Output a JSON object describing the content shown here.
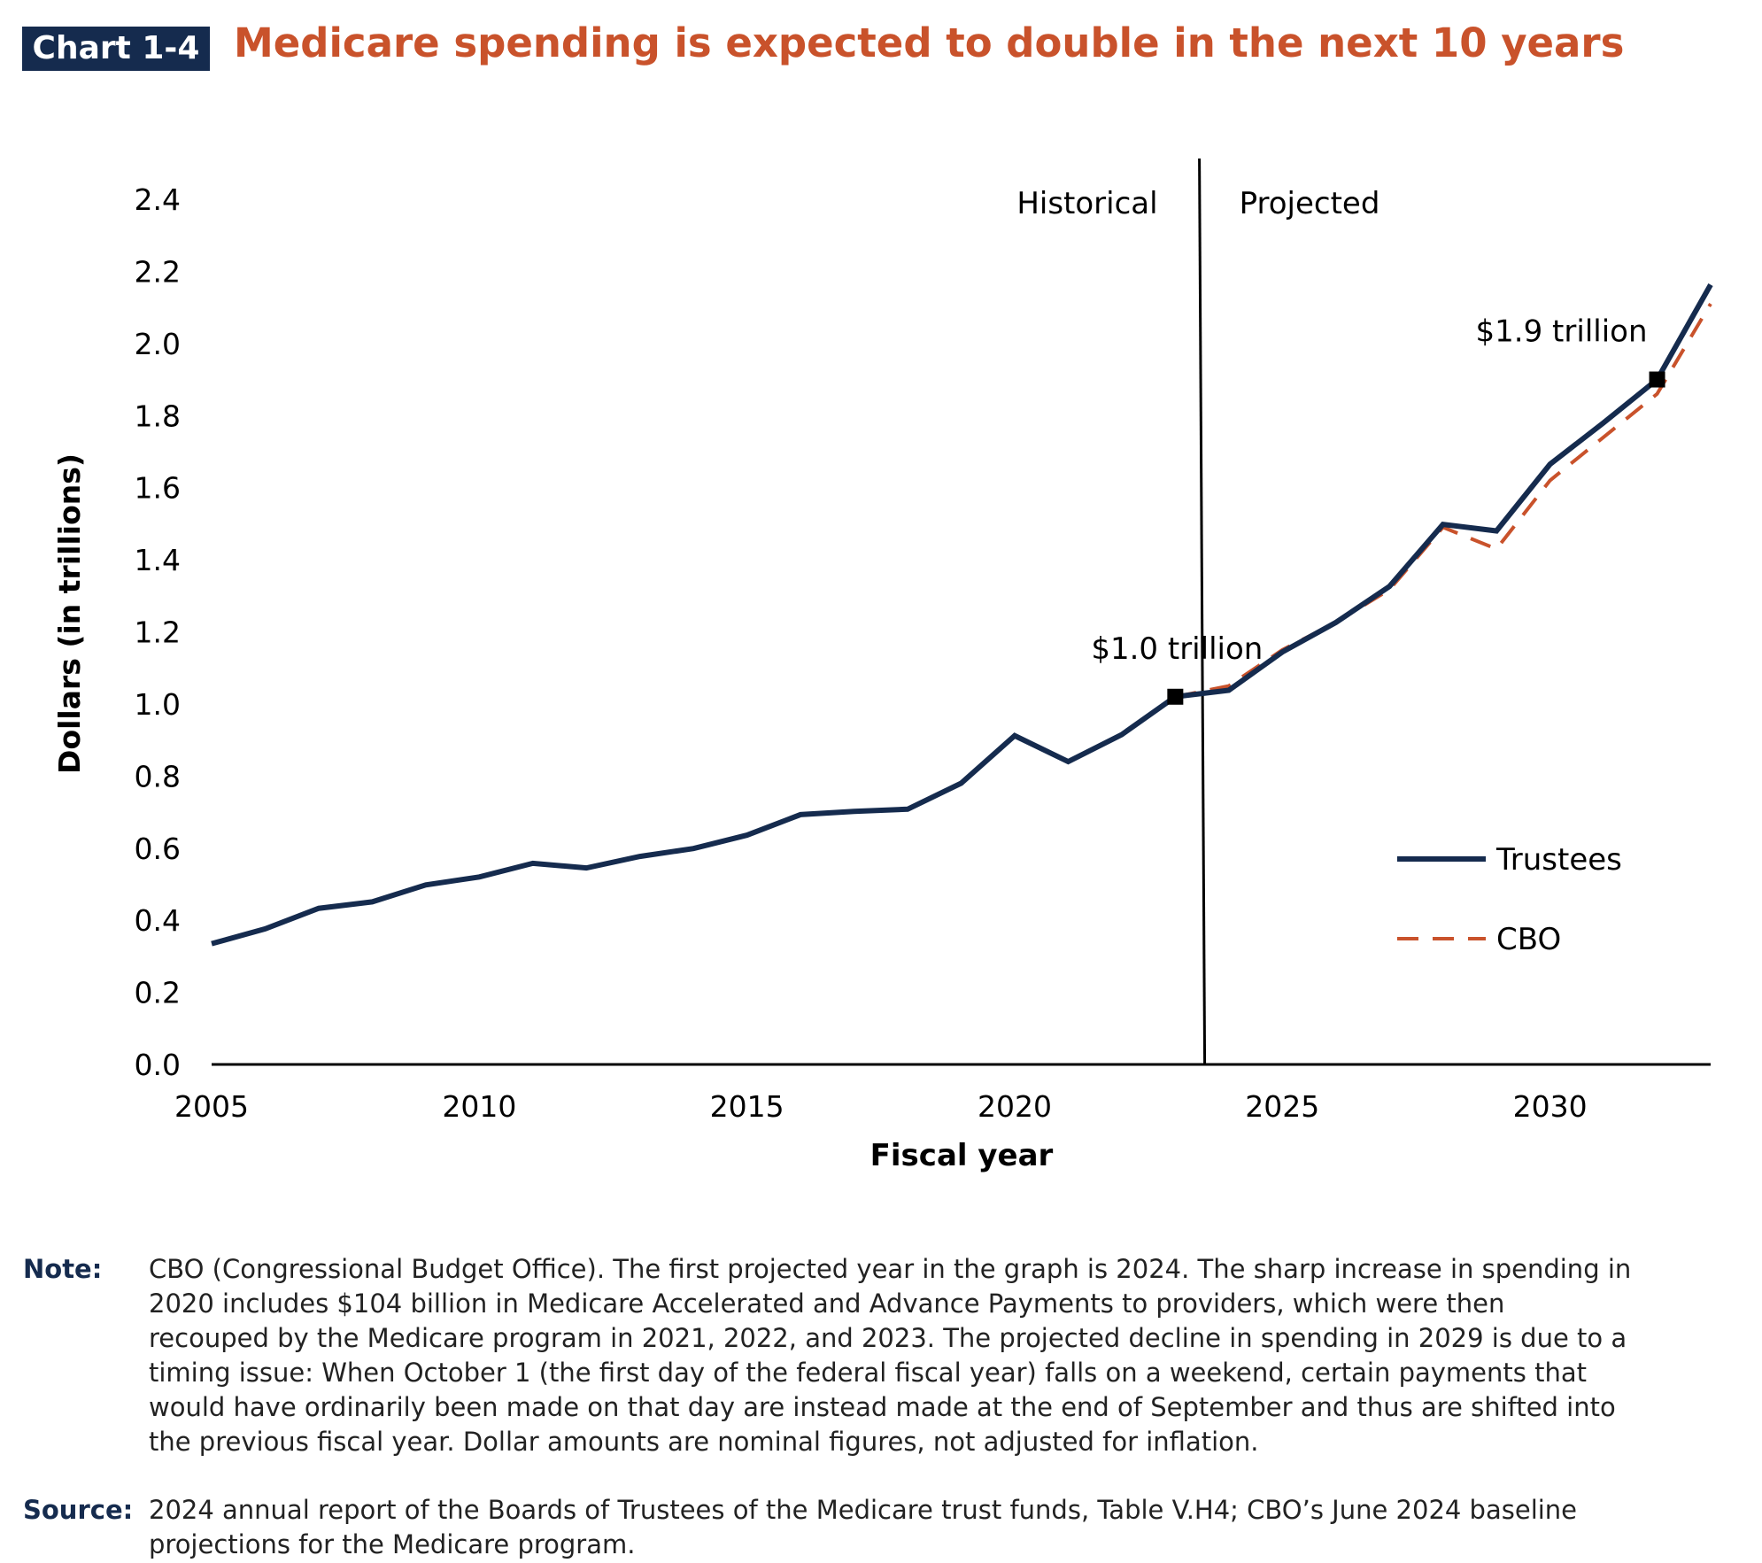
{
  "header": {
    "badge": "Chart 1-4",
    "title": "Medicare spending is expected to double in the next 10 years"
  },
  "chart_data": {
    "type": "line",
    "xlabel": "Fiscal year",
    "ylabel": "Dollars (in trillions)",
    "xlim": [
      2005,
      2033
    ],
    "ylim": [
      0,
      2.4
    ],
    "x_ticks": [
      2005,
      2010,
      2015,
      2020,
      2025,
      2030
    ],
    "y_ticks": [
      "0.0",
      "0.2",
      "0.4",
      "0.6",
      "0.8",
      "1.0",
      "1.2",
      "1.4",
      "1.6",
      "1.8",
      "2.0",
      "2.2",
      "2.4"
    ],
    "grid": false,
    "legend_placement": "right",
    "divider": {
      "x": 2023.5,
      "left_label": "Historical",
      "right_label": "Projected"
    },
    "series": [
      {
        "name": "Trustees",
        "color": "#152B4E",
        "style": "solid",
        "x": [
          2005,
          2006,
          2007,
          2008,
          2009,
          2010,
          2011,
          2012,
          2013,
          2014,
          2015,
          2016,
          2017,
          2018,
          2019,
          2020,
          2021,
          2022,
          2023,
          2024,
          2025,
          2026,
          2027,
          2028,
          2029,
          2030,
          2031,
          2032,
          2033
        ],
        "values": [
          0.335,
          0.376,
          0.433,
          0.451,
          0.498,
          0.52,
          0.558,
          0.545,
          0.577,
          0.599,
          0.636,
          0.693,
          0.702,
          0.708,
          0.78,
          0.912,
          0.84,
          0.915,
          1.02,
          1.038,
          1.144,
          1.226,
          1.326,
          1.498,
          1.48,
          1.665,
          1.78,
          1.9,
          2.163
        ]
      },
      {
        "name": "CBO",
        "color": "#C9522B",
        "style": "dashed",
        "x": [
          2023,
          2024,
          2025,
          2026,
          2027,
          2028,
          2029,
          2030,
          2031,
          2032,
          2033
        ],
        "values": [
          1.02,
          1.05,
          1.15,
          1.226,
          1.317,
          1.49,
          1.43,
          1.62,
          1.74,
          1.86,
          2.11
        ]
      }
    ],
    "annotations": [
      {
        "x": 2023,
        "y": 1.02,
        "text": "$1.0 trillion"
      },
      {
        "x": 2032,
        "y": 1.9,
        "text": "$1.9 trillion"
      }
    ]
  },
  "notes": {
    "note_label": "Note:",
    "note_lines": [
      "CBO (Congressional Budget Office). The first projected year in the graph is 2024. The sharp increase in spending in",
      "2020 includes $104 billion in Medicare Accelerated and Advance Payments to providers, which were then",
      "recouped by the Medicare program in 2021, 2022, and 2023. The projected decline in spending in 2029 is due to a",
      "timing issue: When October 1 (the first day of the federal fiscal year) falls on a weekend, certain payments that",
      "would have ordinarily been made on that day are instead made at the end of September and thus are shifted into",
      "the previous fiscal year. Dollar amounts are nominal figures, not adjusted for inflation."
    ],
    "source_label": "Source:",
    "source_lines": [
      "2024 annual report of the Boards of Trustees of the Medicare trust funds, Table V.H4; CBO’s June 2024 baseline",
      "projections for the Medicare program."
    ]
  }
}
